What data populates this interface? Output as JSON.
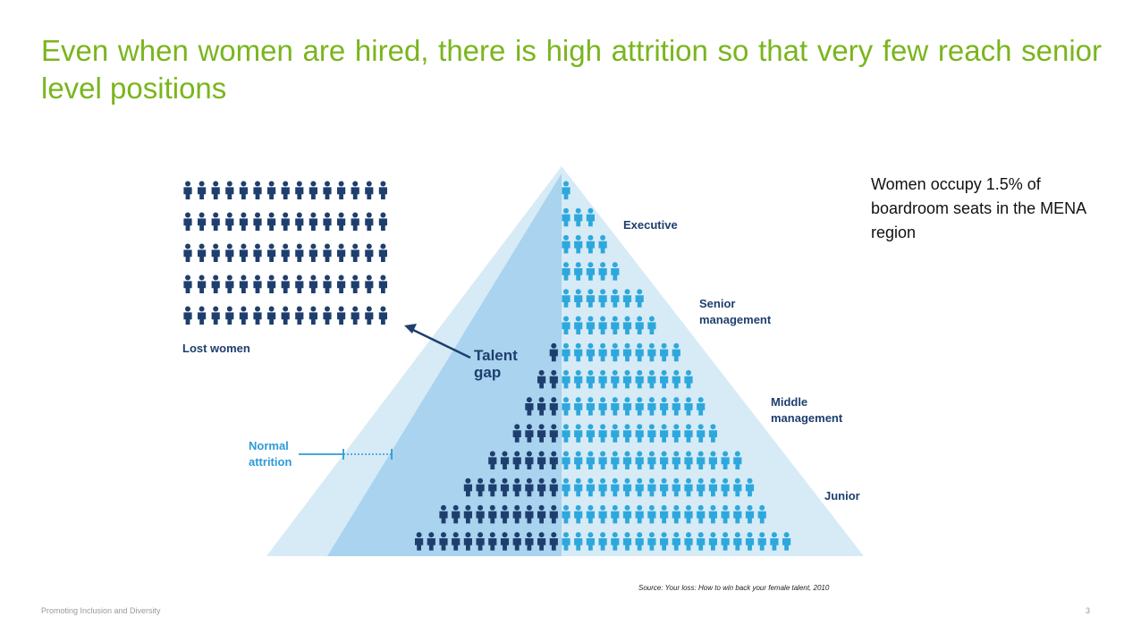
{
  "slide": {
    "title": "Even when women are hired, there is high attrition so that very few reach senior level positions",
    "callout": "Women occupy 1.5% of boardroom seats in the MENA region",
    "source": "Source: Your loss: How to win back your female talent, 2010",
    "footer": "Promoting Inclusion and Diversity",
    "page_number": "3"
  },
  "diagram": {
    "levels": {
      "executive": "Executive",
      "senior_1": "Senior",
      "senior_2": "management",
      "middle_1": "Middle",
      "middle_2": "management",
      "junior": "Junior"
    },
    "lost_women_label": "Lost women",
    "talent_gap_1": "Talent",
    "talent_gap_2": "gap",
    "normal_attrition_1": "Normal",
    "normal_attrition_2": "attrition",
    "lost_women_grid": {
      "rows": 5,
      "cols": 15
    },
    "pyramid_rows": [
      {
        "dark": 0,
        "light": 1
      },
      {
        "dark": 0,
        "light": 3
      },
      {
        "dark": 0,
        "light": 4
      },
      {
        "dark": 0,
        "light": 5
      },
      {
        "dark": 0,
        "light": 7
      },
      {
        "dark": 0,
        "light": 8
      },
      {
        "dark": 1,
        "light": 10
      },
      {
        "dark": 2,
        "light": 11
      },
      {
        "dark": 3,
        "light": 12
      },
      {
        "dark": 4,
        "light": 13
      },
      {
        "dark": 6,
        "light": 15
      },
      {
        "dark": 8,
        "light": 16
      },
      {
        "dark": 10,
        "light": 17
      },
      {
        "dark": 12,
        "light": 19
      }
    ],
    "colors": {
      "dark_figure": "#1e3f6e",
      "light_figure": "#2ea8dc",
      "pyramid_outer": "#d6ebf6",
      "pyramid_inner": "#a9d3ee",
      "label": "#1e3f6e",
      "attrition_label": "#2e9bd6",
      "title": "#7ab51d"
    }
  }
}
